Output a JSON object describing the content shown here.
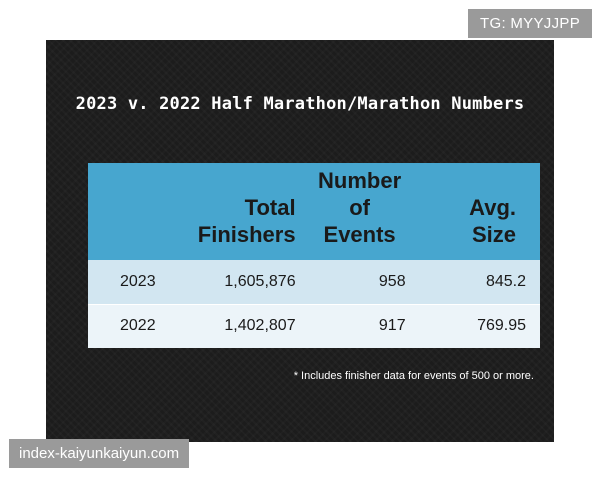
{
  "watermark_top": "TG: MYYJJPP",
  "watermark_bottom": "index-kaiyunkaiyun.com",
  "slide": {
    "title": "2023 v. 2022 Half Marathon/Marathon Numbers",
    "footnote": "* Includes finisher data for events of 500 or more."
  },
  "chart_data": {
    "type": "table",
    "title": "2023 v. 2022 Half Marathon/Marathon Numbers",
    "columns": [
      "",
      "Total Finishers",
      "Number of Events",
      "Avg. Size"
    ],
    "header_lines": [
      [],
      [
        "Total",
        "Finishers"
      ],
      [
        "Number",
        "of",
        "Events"
      ],
      [
        "Avg.",
        "Size"
      ]
    ],
    "rows": [
      {
        "year": "2023",
        "total_finishers": "1,605,876",
        "number_of_events": "958",
        "avg_size": "845.2"
      },
      {
        "year": "2022",
        "total_finishers": "1,402,807",
        "number_of_events": "917",
        "avg_size": "769.95"
      }
    ],
    "colors": {
      "header_background": "#47a6cf",
      "row_odd_background": "#d2e6f1",
      "row_even_background": "#ecf4f9",
      "slide_background": "#1c1c1c"
    }
  }
}
